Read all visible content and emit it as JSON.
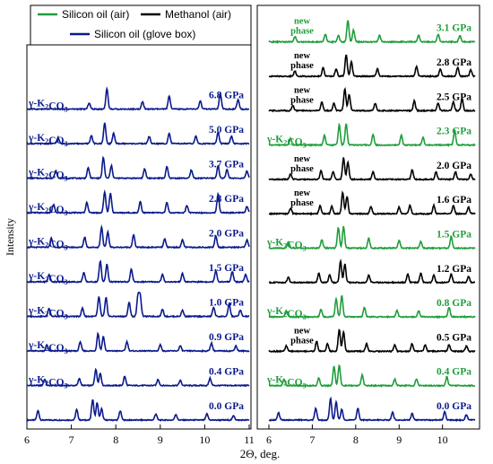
{
  "legend": {
    "items": [
      {
        "label": "Silicon oil (air)",
        "color": "#1f9e3a"
      },
      {
        "label": "Methanol (air)",
        "color": "#000000"
      },
      {
        "label": "Silicon oil (glove box)",
        "color": "#0a1a8c"
      }
    ]
  },
  "colors": {
    "green": "#1f9e3a",
    "black": "#000000",
    "blue": "#0a1a8c"
  },
  "chart_data": [
    {
      "type": "line",
      "xlabel": "2Θ, deg.",
      "ylabel": "Intensity",
      "xlim": [
        6,
        11
      ],
      "xticks": [
        "6",
        "7",
        "8",
        "9",
        "10",
        "11"
      ],
      "series": [
        {
          "pressure": "0.0 GPa",
          "color": "#0a1a8c",
          "side_label": "",
          "peaks": [
            [
              6.25,
              0.45
            ],
            [
              7.12,
              0.5
            ],
            [
              7.48,
              1.0
            ],
            [
              7.58,
              0.85
            ],
            [
              7.68,
              0.55
            ],
            [
              8.1,
              0.45
            ],
            [
              8.9,
              0.3
            ],
            [
              9.35,
              0.28
            ],
            [
              10.05,
              0.3
            ],
            [
              10.65,
              0.22
            ]
          ]
        },
        {
          "pressure": "0.4 GPa",
          "color": "#0a1a8c",
          "side_label": "γ-K₂CO₃",
          "peaks": [
            [
              6.4,
              0.3
            ],
            [
              7.18,
              0.35
            ],
            [
              7.55,
              0.8
            ],
            [
              7.65,
              0.6
            ],
            [
              8.2,
              0.45
            ],
            [
              8.95,
              0.3
            ],
            [
              9.45,
              0.25
            ],
            [
              10.12,
              0.35
            ]
          ]
        },
        {
          "pressure": "0.9 GPa",
          "color": "#0a1a8c",
          "side_label": "γ-K₂CO₃",
          "peaks": [
            [
              6.45,
              0.3
            ],
            [
              7.2,
              0.45
            ],
            [
              7.6,
              0.85
            ],
            [
              7.72,
              0.7
            ],
            [
              8.25,
              0.45
            ],
            [
              9.0,
              0.3
            ],
            [
              9.45,
              0.25
            ],
            [
              10.15,
              0.38
            ],
            [
              10.7,
              0.25
            ]
          ]
        },
        {
          "pressure": "1.0 GPa",
          "color": "#0a1a8c",
          "side_label": "γ-K₂CO₃",
          "peaks": [
            [
              6.5,
              0.4
            ],
            [
              7.25,
              0.4
            ],
            [
              7.62,
              0.95
            ],
            [
              7.78,
              0.9
            ],
            [
              8.3,
              0.7
            ],
            [
              8.5,
              1.0
            ],
            [
              8.55,
              0.95
            ],
            [
              9.05,
              0.35
            ],
            [
              9.5,
              0.3
            ],
            [
              10.2,
              0.45
            ],
            [
              10.55,
              0.6
            ],
            [
              10.8,
              0.3
            ]
          ]
        },
        {
          "pressure": "1.5 GPa",
          "color": "#0a1a8c",
          "side_label": "γ-K₂CO₃",
          "peaks": [
            [
              6.5,
              0.35
            ],
            [
              7.28,
              0.45
            ],
            [
              7.65,
              1.0
            ],
            [
              7.8,
              0.85
            ],
            [
              8.35,
              0.6
            ],
            [
              9.05,
              0.35
            ],
            [
              9.5,
              0.4
            ],
            [
              10.25,
              0.55
            ],
            [
              10.62,
              0.5
            ],
            [
              10.92,
              0.35
            ]
          ]
        },
        {
          "pressure": "2.0 GPa",
          "color": "#0a1a8c",
          "side_label": "γ-K₂CO₃",
          "peaks": [
            [
              6.55,
              0.45
            ],
            [
              7.3,
              0.5
            ],
            [
              7.68,
              1.0
            ],
            [
              7.82,
              0.75
            ],
            [
              8.4,
              0.6
            ],
            [
              9.1,
              0.4
            ],
            [
              9.5,
              0.35
            ],
            [
              10.25,
              0.55
            ],
            [
              10.95,
              0.35
            ]
          ]
        },
        {
          "pressure": "2.8 GPa",
          "color": "#0a1a8c",
          "side_label": "γ-K₂CO₃",
          "peaks": [
            [
              6.6,
              0.4
            ],
            [
              7.35,
              0.5
            ],
            [
              7.75,
              1.0
            ],
            [
              7.88,
              0.95
            ],
            [
              8.55,
              0.55
            ],
            [
              9.15,
              0.5
            ],
            [
              9.6,
              0.35
            ],
            [
              10.3,
              0.9
            ],
            [
              10.95,
              0.3
            ]
          ]
        },
        {
          "pressure": "3.7 GPa",
          "color": "#0a1a8c",
          "side_label": "γ-K₂CO₃",
          "peaks": [
            [
              6.65,
              0.35
            ],
            [
              7.38,
              0.5
            ],
            [
              7.72,
              1.0
            ],
            [
              7.9,
              0.6
            ],
            [
              8.65,
              0.45
            ],
            [
              9.15,
              0.55
            ],
            [
              9.7,
              0.4
            ],
            [
              10.3,
              0.6
            ],
            [
              10.5,
              0.4
            ],
            [
              10.95,
              0.35
            ]
          ]
        },
        {
          "pressure": "5.0 GPa",
          "color": "#0a1a8c",
          "side_label": "γ-K₂CO₃",
          "peaks": [
            [
              6.7,
              0.3
            ],
            [
              7.45,
              0.4
            ],
            [
              7.75,
              1.0
            ],
            [
              7.95,
              0.5
            ],
            [
              8.75,
              0.35
            ],
            [
              9.2,
              0.5
            ],
            [
              9.8,
              0.35
            ],
            [
              10.3,
              0.55
            ],
            [
              10.6,
              0.35
            ]
          ]
        },
        {
          "pressure": "6.8 GPa",
          "color": "#0a1a8c",
          "side_label": "γ-K₂CO₃",
          "peaks": [
            [
              7.4,
              0.3
            ],
            [
              7.8,
              1.0
            ],
            [
              8.6,
              0.35
            ],
            [
              9.2,
              0.65
            ],
            [
              9.9,
              0.4
            ],
            [
              10.35,
              0.75
            ],
            [
              10.75,
              0.45
            ]
          ]
        }
      ]
    },
    {
      "type": "line",
      "xlabel": "",
      "xlim": [
        6,
        10.75
      ],
      "xticks": [
        "6",
        "7",
        "8",
        "9",
        "10"
      ],
      "series": [
        {
          "pressure": "0.0 GPa",
          "color": "#0a1a8c",
          "side_label": "",
          "peaks": [
            [
              6.22,
              0.35
            ],
            [
              7.08,
              0.55
            ],
            [
              7.42,
              1.0
            ],
            [
              7.55,
              0.85
            ],
            [
              7.68,
              0.5
            ],
            [
              8.05,
              0.55
            ],
            [
              8.85,
              0.35
            ],
            [
              9.3,
              0.3
            ],
            [
              10.05,
              0.4
            ],
            [
              10.55,
              0.25
            ]
          ]
        },
        {
          "pressure": "0.4 GPa",
          "color": "#1f9e3a",
          "side_label": "γ-K₂CO₃",
          "peaks": [
            [
              6.35,
              0.3
            ],
            [
              7.15,
              0.35
            ],
            [
              7.5,
              0.9
            ],
            [
              7.62,
              0.95
            ],
            [
              8.15,
              0.5
            ],
            [
              8.9,
              0.3
            ],
            [
              9.4,
              0.3
            ],
            [
              10.1,
              0.4
            ]
          ]
        },
        {
          "pressure": "0.5 GPa",
          "color": "#000000",
          "side_label": "new phase",
          "peaks": [
            [
              6.4,
              0.25
            ],
            [
              7.1,
              0.45
            ],
            [
              7.35,
              0.35
            ],
            [
              7.62,
              1.0
            ],
            [
              7.72,
              0.9
            ],
            [
              8.25,
              0.35
            ],
            [
              8.9,
              0.3
            ],
            [
              9.3,
              0.35
            ],
            [
              9.6,
              0.3
            ],
            [
              10.15,
              0.3
            ],
            [
              10.55,
              0.25
            ]
          ]
        },
        {
          "pressure": "0.8 GPa",
          "color": "#1f9e3a",
          "side_label": "γ-K₂CO₃",
          "peaks": [
            [
              6.4,
              0.3
            ],
            [
              7.2,
              0.35
            ],
            [
              7.55,
              0.85
            ],
            [
              7.68,
              1.0
            ],
            [
              8.2,
              0.45
            ],
            [
              8.95,
              0.3
            ],
            [
              9.45,
              0.3
            ],
            [
              10.15,
              0.45
            ]
          ]
        },
        {
          "pressure": "1.2 GPa",
          "color": "#000000",
          "side_label": "",
          "peaks": [
            [
              6.45,
              0.25
            ],
            [
              7.15,
              0.45
            ],
            [
              7.4,
              0.35
            ],
            [
              7.65,
              1.0
            ],
            [
              7.75,
              0.85
            ],
            [
              8.3,
              0.35
            ],
            [
              9.2,
              0.4
            ],
            [
              9.5,
              0.45
            ],
            [
              9.8,
              0.35
            ],
            [
              10.2,
              0.4
            ],
            [
              10.6,
              0.3
            ]
          ]
        },
        {
          "pressure": "1.5 GPa",
          "color": "#1f9e3a",
          "side_label": "γ-K₂CO₃",
          "peaks": [
            [
              6.45,
              0.3
            ],
            [
              7.22,
              0.4
            ],
            [
              7.6,
              0.95
            ],
            [
              7.72,
              1.0
            ],
            [
              8.3,
              0.45
            ],
            [
              9.0,
              0.35
            ],
            [
              9.5,
              0.3
            ],
            [
              10.2,
              0.55
            ]
          ]
        },
        {
          "pressure": "1.6 GPa",
          "color": "#000000",
          "side_label": "new phase",
          "peaks": [
            [
              6.5,
              0.25
            ],
            [
              7.18,
              0.4
            ],
            [
              7.45,
              0.35
            ],
            [
              7.7,
              1.0
            ],
            [
              7.8,
              0.8
            ],
            [
              8.35,
              0.35
            ],
            [
              9.0,
              0.3
            ],
            [
              9.25,
              0.4
            ],
            [
              9.8,
              0.4
            ],
            [
              10.25,
              0.4
            ],
            [
              10.6,
              0.3
            ]
          ]
        },
        {
          "pressure": "2.0 GPa",
          "color": "#000000",
          "side_label": "new phase",
          "peaks": [
            [
              6.5,
              0.25
            ],
            [
              7.2,
              0.4
            ],
            [
              7.48,
              0.35
            ],
            [
              7.72,
              1.0
            ],
            [
              7.82,
              0.8
            ],
            [
              8.4,
              0.35
            ],
            [
              9.3,
              0.45
            ],
            [
              9.85,
              0.35
            ],
            [
              10.3,
              0.35
            ],
            [
              10.65,
              0.25
            ]
          ]
        },
        {
          "pressure": "2.3 GPa",
          "color": "#1f9e3a",
          "side_label": "γ-K₂CO₃",
          "peaks": [
            [
              6.5,
              0.3
            ],
            [
              7.28,
              0.45
            ],
            [
              7.62,
              0.95
            ],
            [
              7.78,
              1.0
            ],
            [
              8.4,
              0.5
            ],
            [
              9.05,
              0.45
            ],
            [
              9.55,
              0.35
            ],
            [
              10.28,
              0.7
            ]
          ]
        },
        {
          "pressure": "2.5 GPa",
          "color": "#000000",
          "side_label": "new phase",
          "peaks": [
            [
              6.55,
              0.25
            ],
            [
              7.22,
              0.4
            ],
            [
              7.5,
              0.35
            ],
            [
              7.75,
              1.0
            ],
            [
              7.85,
              0.75
            ],
            [
              8.45,
              0.35
            ],
            [
              9.35,
              0.45
            ],
            [
              9.9,
              0.35
            ],
            [
              10.25,
              0.4
            ],
            [
              10.45,
              0.55
            ]
          ]
        },
        {
          "pressure": "2.8 GPa",
          "color": "#000000",
          "side_label": "new phase",
          "peaks": [
            [
              6.6,
              0.25
            ],
            [
              7.25,
              0.4
            ],
            [
              7.55,
              0.35
            ],
            [
              7.78,
              1.0
            ],
            [
              7.9,
              0.7
            ],
            [
              8.5,
              0.35
            ],
            [
              9.4,
              0.45
            ],
            [
              9.95,
              0.35
            ],
            [
              10.35,
              0.4
            ],
            [
              10.65,
              0.3
            ]
          ]
        },
        {
          "pressure": "3.1 GPa",
          "color": "#1f9e3a",
          "side_label": "new phase",
          "peaks": [
            [
              6.6,
              0.25
            ],
            [
              7.3,
              0.35
            ],
            [
              7.6,
              0.3
            ],
            [
              7.82,
              1.0
            ],
            [
              7.95,
              0.55
            ],
            [
              8.55,
              0.3
            ],
            [
              9.45,
              0.3
            ],
            [
              9.9,
              0.35
            ],
            [
              10.4,
              0.3
            ]
          ]
        }
      ]
    }
  ]
}
